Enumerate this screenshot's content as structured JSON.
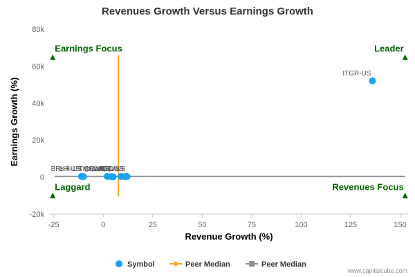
{
  "chart_data": {
    "type": "scatter",
    "title": "Revenues Growth Versus Earnings Growth",
    "xlabel": "Revenue Growth (%)",
    "ylabel": "Earnings Growth (%)",
    "xlim": [
      -27,
      154
    ],
    "ylim": [
      -20000,
      80000
    ],
    "xticks": [
      -25,
      0,
      25,
      50,
      75,
      100,
      125,
      150
    ],
    "yticks": [
      -20000,
      0,
      20000,
      40000,
      60000,
      80000
    ],
    "ytick_labels": [
      "-20k",
      "0",
      "20k",
      "40k",
      "60k",
      "80k"
    ],
    "grid": false,
    "legend_position": "bottom",
    "series": [
      {
        "name": "Symbol",
        "color": "#1aa3f0",
        "points": [
          {
            "label": "ITGR-US",
            "x": 136,
            "y": 52000
          },
          {
            "label": "LH-US",
            "x": -11,
            "y": 300
          },
          {
            "label": "BRKR-US",
            "x": -10,
            "y": 200
          },
          {
            "label": "TMO-US",
            "x": 2,
            "y": 300
          },
          {
            "label": "CRL-US",
            "x": 4,
            "y": 200
          },
          {
            "label": "DGX-US",
            "x": 5,
            "y": 100
          },
          {
            "label": "WAT-US",
            "x": 9,
            "y": 300
          },
          {
            "label": "PKI-US",
            "x": 11,
            "y": 200
          },
          {
            "label": "MTD-US",
            "x": 12,
            "y": 250
          }
        ]
      }
    ],
    "peer_median_x": {
      "name": "Peer Median",
      "value": 7.7,
      "color": "#f5a623"
    },
    "peer_median_y": {
      "name": "Peer Median",
      "value": 300,
      "color": "#8c939d"
    },
    "quadrants": {
      "top_left": "Earnings Focus",
      "top_right": "Leader",
      "bottom_left": "Laggard",
      "bottom_right": "Revenues Focus"
    },
    "quadrant_color": "#006400",
    "credit": "www.capitalcube.com"
  }
}
